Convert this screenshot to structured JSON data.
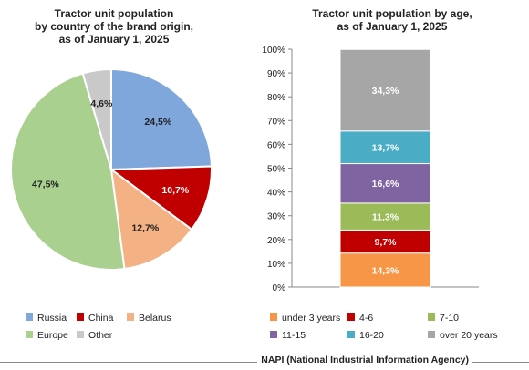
{
  "chart_data": [
    {
      "type": "pie",
      "title": "Tractor unit population\nby country of the brand origin,\nas of January 1, 2025",
      "categories": [
        "Russia",
        "China",
        "Belarus",
        "Europe",
        "Other"
      ],
      "values": [
        24.5,
        10.7,
        12.7,
        47.5,
        4.6
      ],
      "labels": [
        "24,5%",
        "10,7%",
        "12,7%",
        "47,5%",
        "4,6%"
      ],
      "colors": [
        "#7fa7dc",
        "#c00000",
        "#f4b183",
        "#a9d08e",
        "#c9c9c9"
      ],
      "label_colors": [
        "#222222",
        "#ffffff",
        "#222222",
        "#222222",
        "#222222"
      ],
      "legend_position": "bottom"
    },
    {
      "type": "bar",
      "stacked": true,
      "title": "Tractor unit population by age,\nas of January 1, 2025",
      "categories": [
        "under 3 years",
        "4-6",
        "7-10",
        "11-15",
        "16-20",
        "over 20 years"
      ],
      "values": [
        14.3,
        9.7,
        11.3,
        16.6,
        13.7,
        34.3
      ],
      "labels": [
        "14,3%",
        "9,7%",
        "11,3%",
        "16,6%",
        "13,7%",
        "34,3%"
      ],
      "colors": [
        "#f79646",
        "#c00000",
        "#9bbb59",
        "#8064a2",
        "#4bacc6",
        "#a6a6a6"
      ],
      "ylim": [
        0,
        100
      ],
      "yticks": [
        "0%",
        "10%",
        "20%",
        "30%",
        "40%",
        "50%",
        "60%",
        "70%",
        "80%",
        "90%",
        "100%"
      ],
      "grid": false,
      "legend_position": "bottom"
    }
  ],
  "footer": {
    "source": "NAPI (National Industrial Information Agency)"
  }
}
